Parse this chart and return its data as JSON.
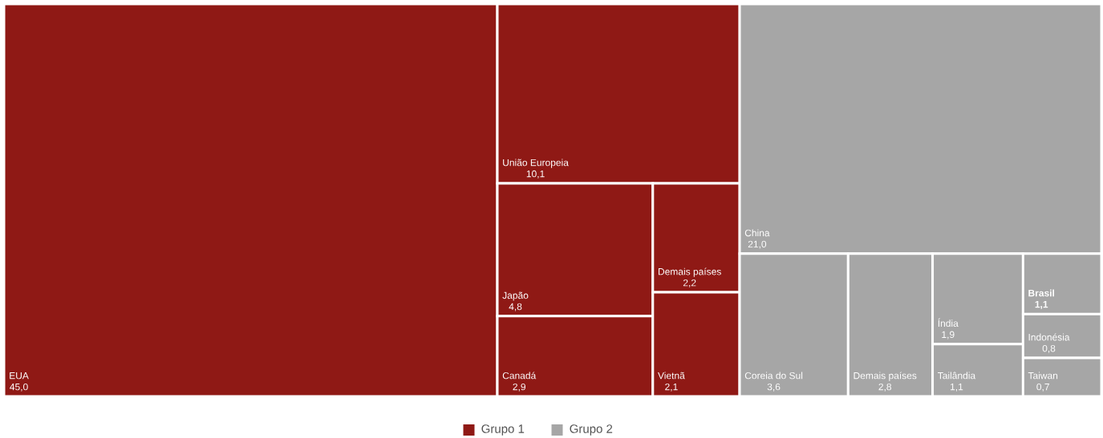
{
  "chart_data": {
    "type": "other",
    "legend": "bottom",
    "categories": [
      "EUA",
      "União Europeia",
      "Japão",
      "Canadá",
      "Demais países",
      "Vietnã",
      "China",
      "Coreia do Sul",
      "Demais países",
      "Índia",
      "Tailândia",
      "**Brasil**",
      "Indonésia",
      "Taiwan"
    ],
    "series": [
      {
        "name": "Grupo 1",
        "color": "#8f1915",
        "values": [
          45.0,
          10.1,
          4.8,
          2.9,
          2.2,
          2.1,
          null,
          null,
          null,
          null,
          null,
          null,
          null,
          null
        ],
        "value_labels": [
          "45,0",
          "10,1",
          "4,8",
          "2,9",
          "2,2",
          "2,1",
          null,
          null,
          null,
          null,
          null,
          null,
          null,
          null
        ]
      },
      {
        "name": "Grupo 2",
        "color": "#a6a6a6",
        "values": [
          null,
          null,
          null,
          null,
          null,
          null,
          21.0,
          3.6,
          2.8,
          1.9,
          1.1,
          1.1,
          0.8,
          0.7
        ],
        "value_labels": [
          null,
          null,
          null,
          null,
          null,
          null,
          "21,0",
          "3,6",
          "2,8",
          "1,9",
          "1,1",
          "**1,1**",
          "0,8",
          "0,7"
        ]
      }
    ]
  }
}
